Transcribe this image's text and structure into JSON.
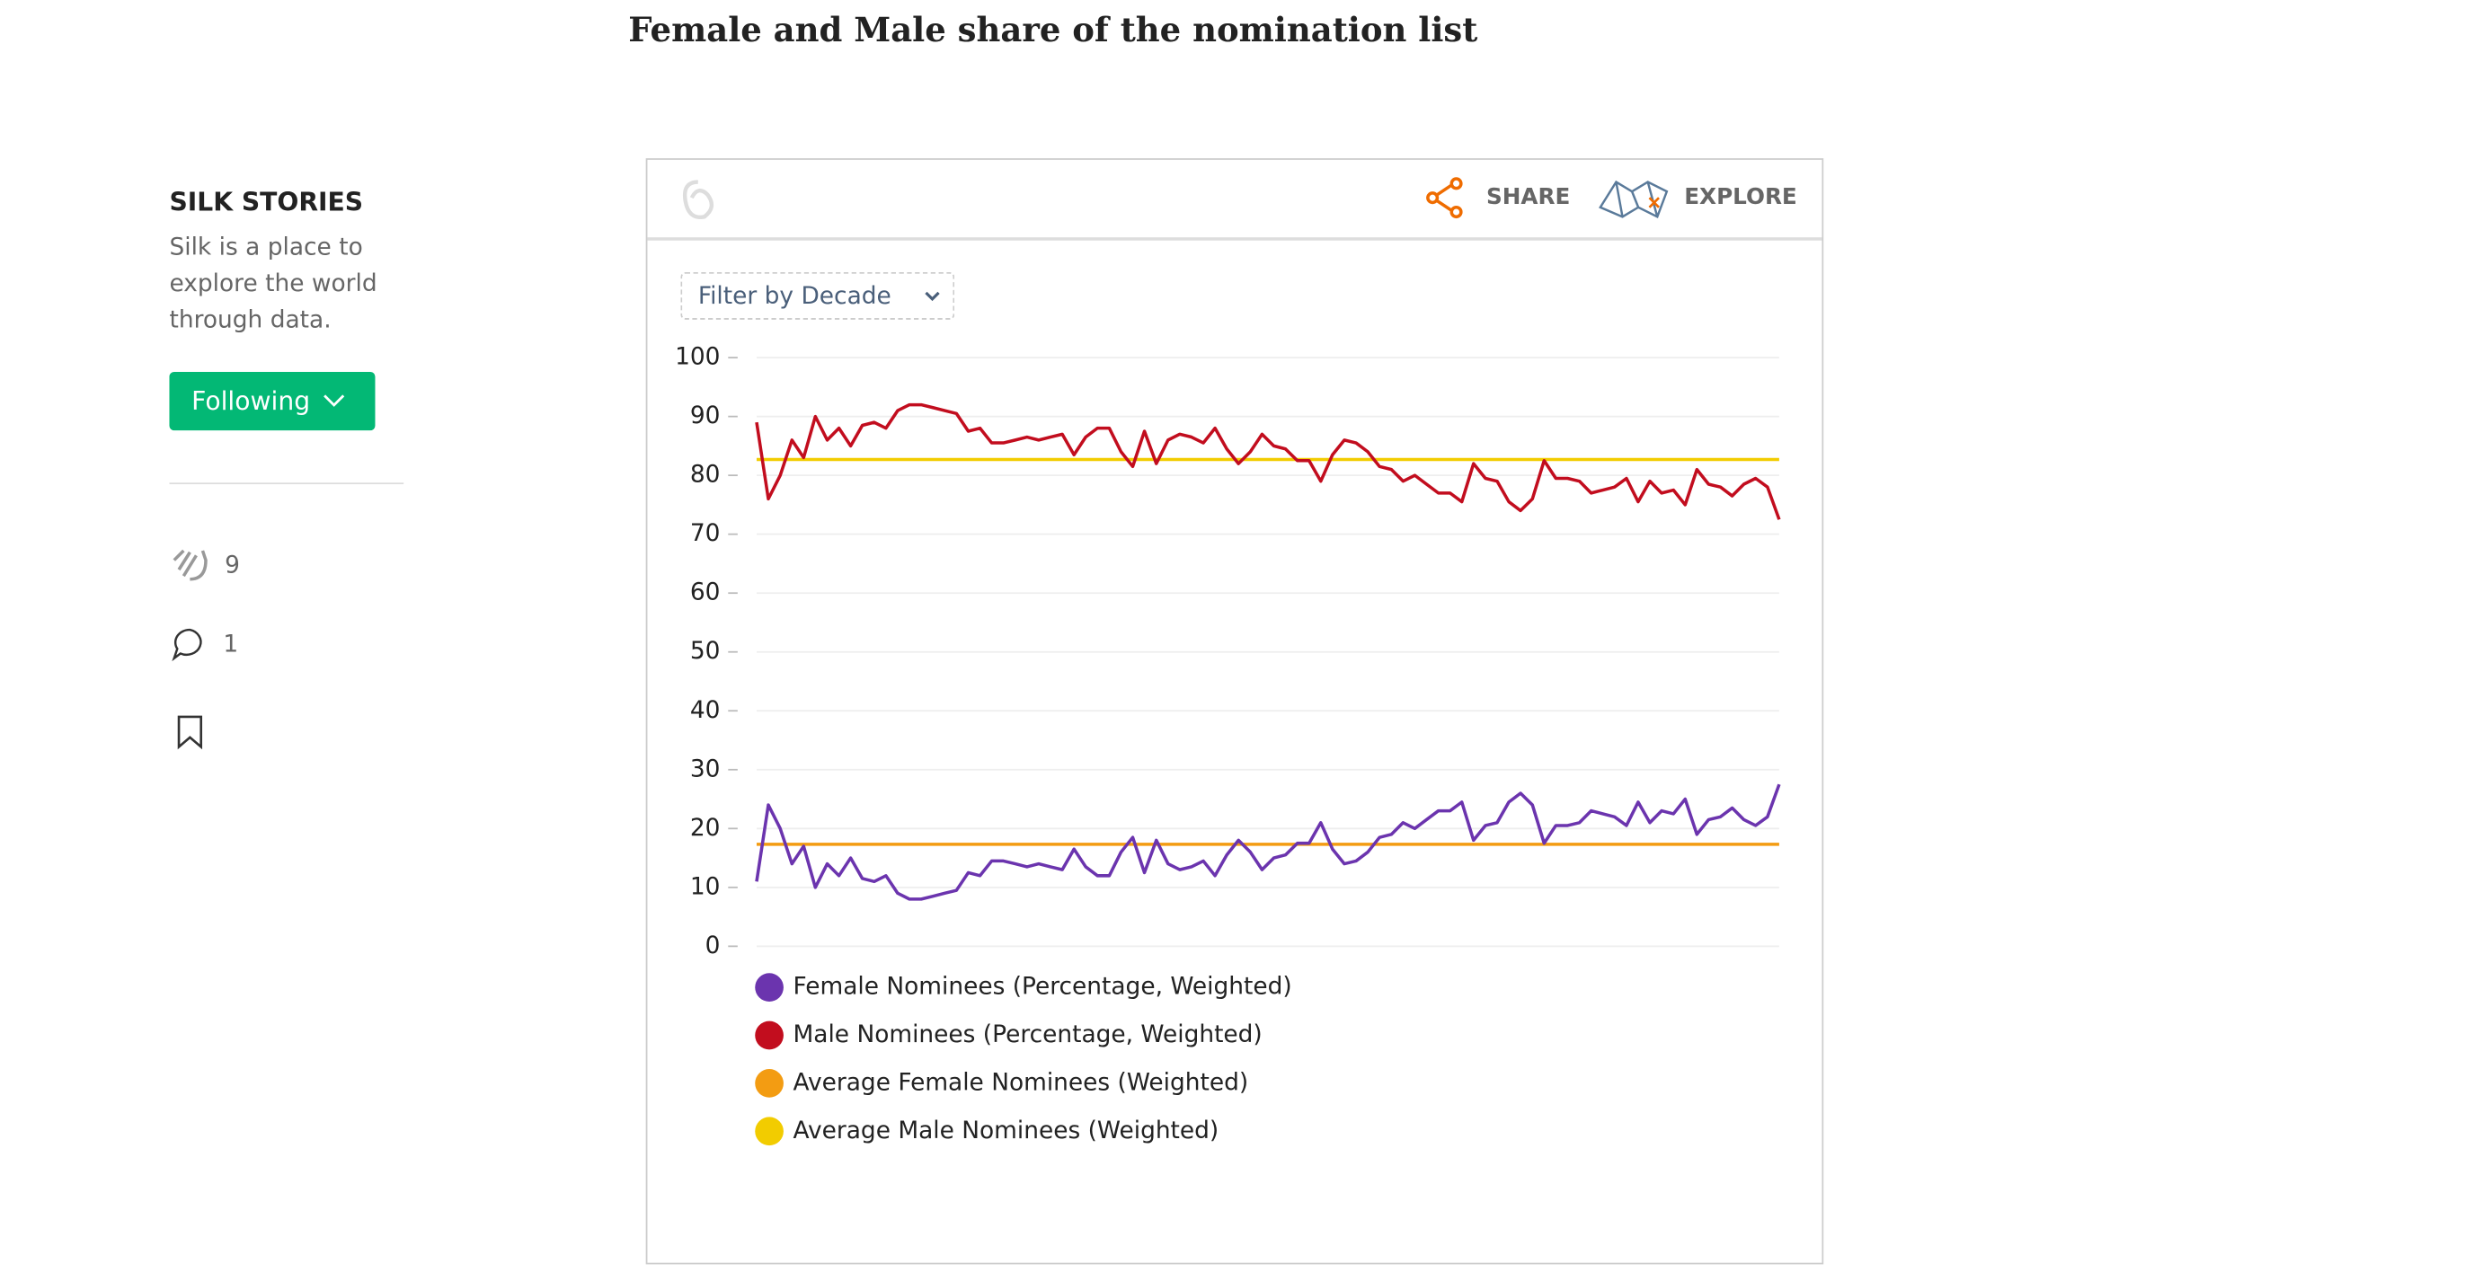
{
  "header": {
    "title": "Female and Male share of the nomination list"
  },
  "sidebar": {
    "name": "SILK STORIES",
    "description": [
      "Silk is a place to",
      "explore the world",
      "through data."
    ],
    "button": "Following",
    "claps": "9",
    "responses": "1"
  },
  "widget": {
    "share": "SHARE",
    "explore": "EXPLORE",
    "filter": "Filter by Decade"
  },
  "chart_data": {
    "type": "line",
    "ylim": [
      0,
      100
    ],
    "yticks": [
      0,
      10,
      20,
      30,
      40,
      50,
      60,
      70,
      80,
      90,
      100
    ],
    "grid": true,
    "series": [
      {
        "name": "Female Nominees (Percentage, Weighted)",
        "color": "#6b34ae",
        "values": [
          11,
          24,
          20,
          14,
          17,
          10,
          14,
          12,
          15,
          11.5,
          11,
          12,
          9,
          8,
          8,
          8.5,
          9,
          9.5,
          12.5,
          12,
          14.5,
          14.5,
          14,
          13.5,
          14,
          13.5,
          13,
          16.5,
          13.5,
          12,
          12,
          16,
          18.5,
          12.5,
          18,
          14,
          13,
          13.5,
          14.5,
          12,
          15.5,
          18,
          16,
          13,
          15,
          15.5,
          17.5,
          17.5,
          21,
          16.5,
          14,
          14.5,
          16,
          18.5,
          19,
          21,
          20,
          21.5,
          23,
          23,
          24.5,
          18,
          20.5,
          21,
          24.5,
          26,
          24,
          17.5,
          20.5,
          20.5,
          21,
          23,
          22.5,
          22,
          20.5,
          24.5,
          21,
          23,
          22.5,
          25,
          19,
          21.5,
          22,
          23.5,
          21.5,
          20.5,
          22,
          27.5
        ]
      },
      {
        "name": "Male Nominees (Percentage, Weighted)",
        "color": "#c20d1e",
        "values": [
          89,
          76,
          80,
          86,
          83,
          90,
          86,
          88,
          85,
          88.5,
          89,
          88,
          91,
          92,
          92,
          91.5,
          91,
          90.5,
          87.5,
          88,
          85.5,
          85.5,
          86,
          86.5,
          86,
          86.5,
          87,
          83.5,
          86.5,
          88,
          88,
          84,
          81.5,
          87.5,
          82,
          86,
          87,
          86.5,
          85.5,
          88,
          84.5,
          82,
          84,
          87,
          85,
          84.5,
          82.5,
          82.5,
          79,
          83.5,
          86,
          85.5,
          84,
          81.5,
          81,
          79,
          80,
          78.5,
          77,
          77,
          75.5,
          82,
          79.5,
          79,
          75.5,
          74,
          76,
          82.5,
          79.5,
          79.5,
          79,
          77,
          77.5,
          78,
          79.5,
          75.5,
          79,
          77,
          77.5,
          75,
          81,
          78.5,
          78,
          76.5,
          78.5,
          79.5,
          78,
          72.5
        ]
      },
      {
        "name": "Average Female Nominees (Weighted)",
        "color": "#f39c12",
        "values": [
          17.3,
          17.3,
          17.3,
          17.3,
          17.3,
          17.3,
          17.3,
          17.3,
          17.3,
          17.3,
          17.3,
          17.3,
          17.3,
          17.3,
          17.3,
          17.3,
          17.3,
          17.3,
          17.3,
          17.3,
          17.3,
          17.3,
          17.3,
          17.3,
          17.3,
          17.3,
          17.3,
          17.3,
          17.3,
          17.3,
          17.3,
          17.3,
          17.3,
          17.3,
          17.3,
          17.3,
          17.3,
          17.3,
          17.3,
          17.3,
          17.3,
          17.3,
          17.3,
          17.3,
          17.3,
          17.3,
          17.3,
          17.3,
          17.3,
          17.3,
          17.3,
          17.3,
          17.3,
          17.3,
          17.3,
          17.3,
          17.3,
          17.3,
          17.3,
          17.3,
          17.3,
          17.3,
          17.3,
          17.3,
          17.3,
          17.3,
          17.3,
          17.3,
          17.3,
          17.3,
          17.3,
          17.3,
          17.3,
          17.3,
          17.3,
          17.3,
          17.3,
          17.3,
          17.3,
          17.3,
          17.3,
          17.3,
          17.3,
          17.3,
          17.3,
          17.3,
          17.3,
          17.3
        ]
      },
      {
        "name": "Average Male Nominees (Weighted)",
        "color": "#f2cc00",
        "values": [
          82.7,
          82.7,
          82.7,
          82.7,
          82.7,
          82.7,
          82.7,
          82.7,
          82.7,
          82.7,
          82.7,
          82.7,
          82.7,
          82.7,
          82.7,
          82.7,
          82.7,
          82.7,
          82.7,
          82.7,
          82.7,
          82.7,
          82.7,
          82.7,
          82.7,
          82.7,
          82.7,
          82.7,
          82.7,
          82.7,
          82.7,
          82.7,
          82.7,
          82.7,
          82.7,
          82.7,
          82.7,
          82.7,
          82.7,
          82.7,
          82.7,
          82.7,
          82.7,
          82.7,
          82.7,
          82.7,
          82.7,
          82.7,
          82.7,
          82.7,
          82.7,
          82.7,
          82.7,
          82.7,
          82.7,
          82.7,
          82.7,
          82.7,
          82.7,
          82.7,
          82.7,
          82.7,
          82.7,
          82.7,
          82.7,
          82.7,
          82.7,
          82.7,
          82.7,
          82.7,
          82.7,
          82.7,
          82.7,
          82.7,
          82.7,
          82.7,
          82.7,
          82.7,
          82.7,
          82.7,
          82.7,
          82.7,
          82.7,
          82.7,
          82.7,
          82.7,
          82.7,
          82.7
        ]
      }
    ]
  }
}
